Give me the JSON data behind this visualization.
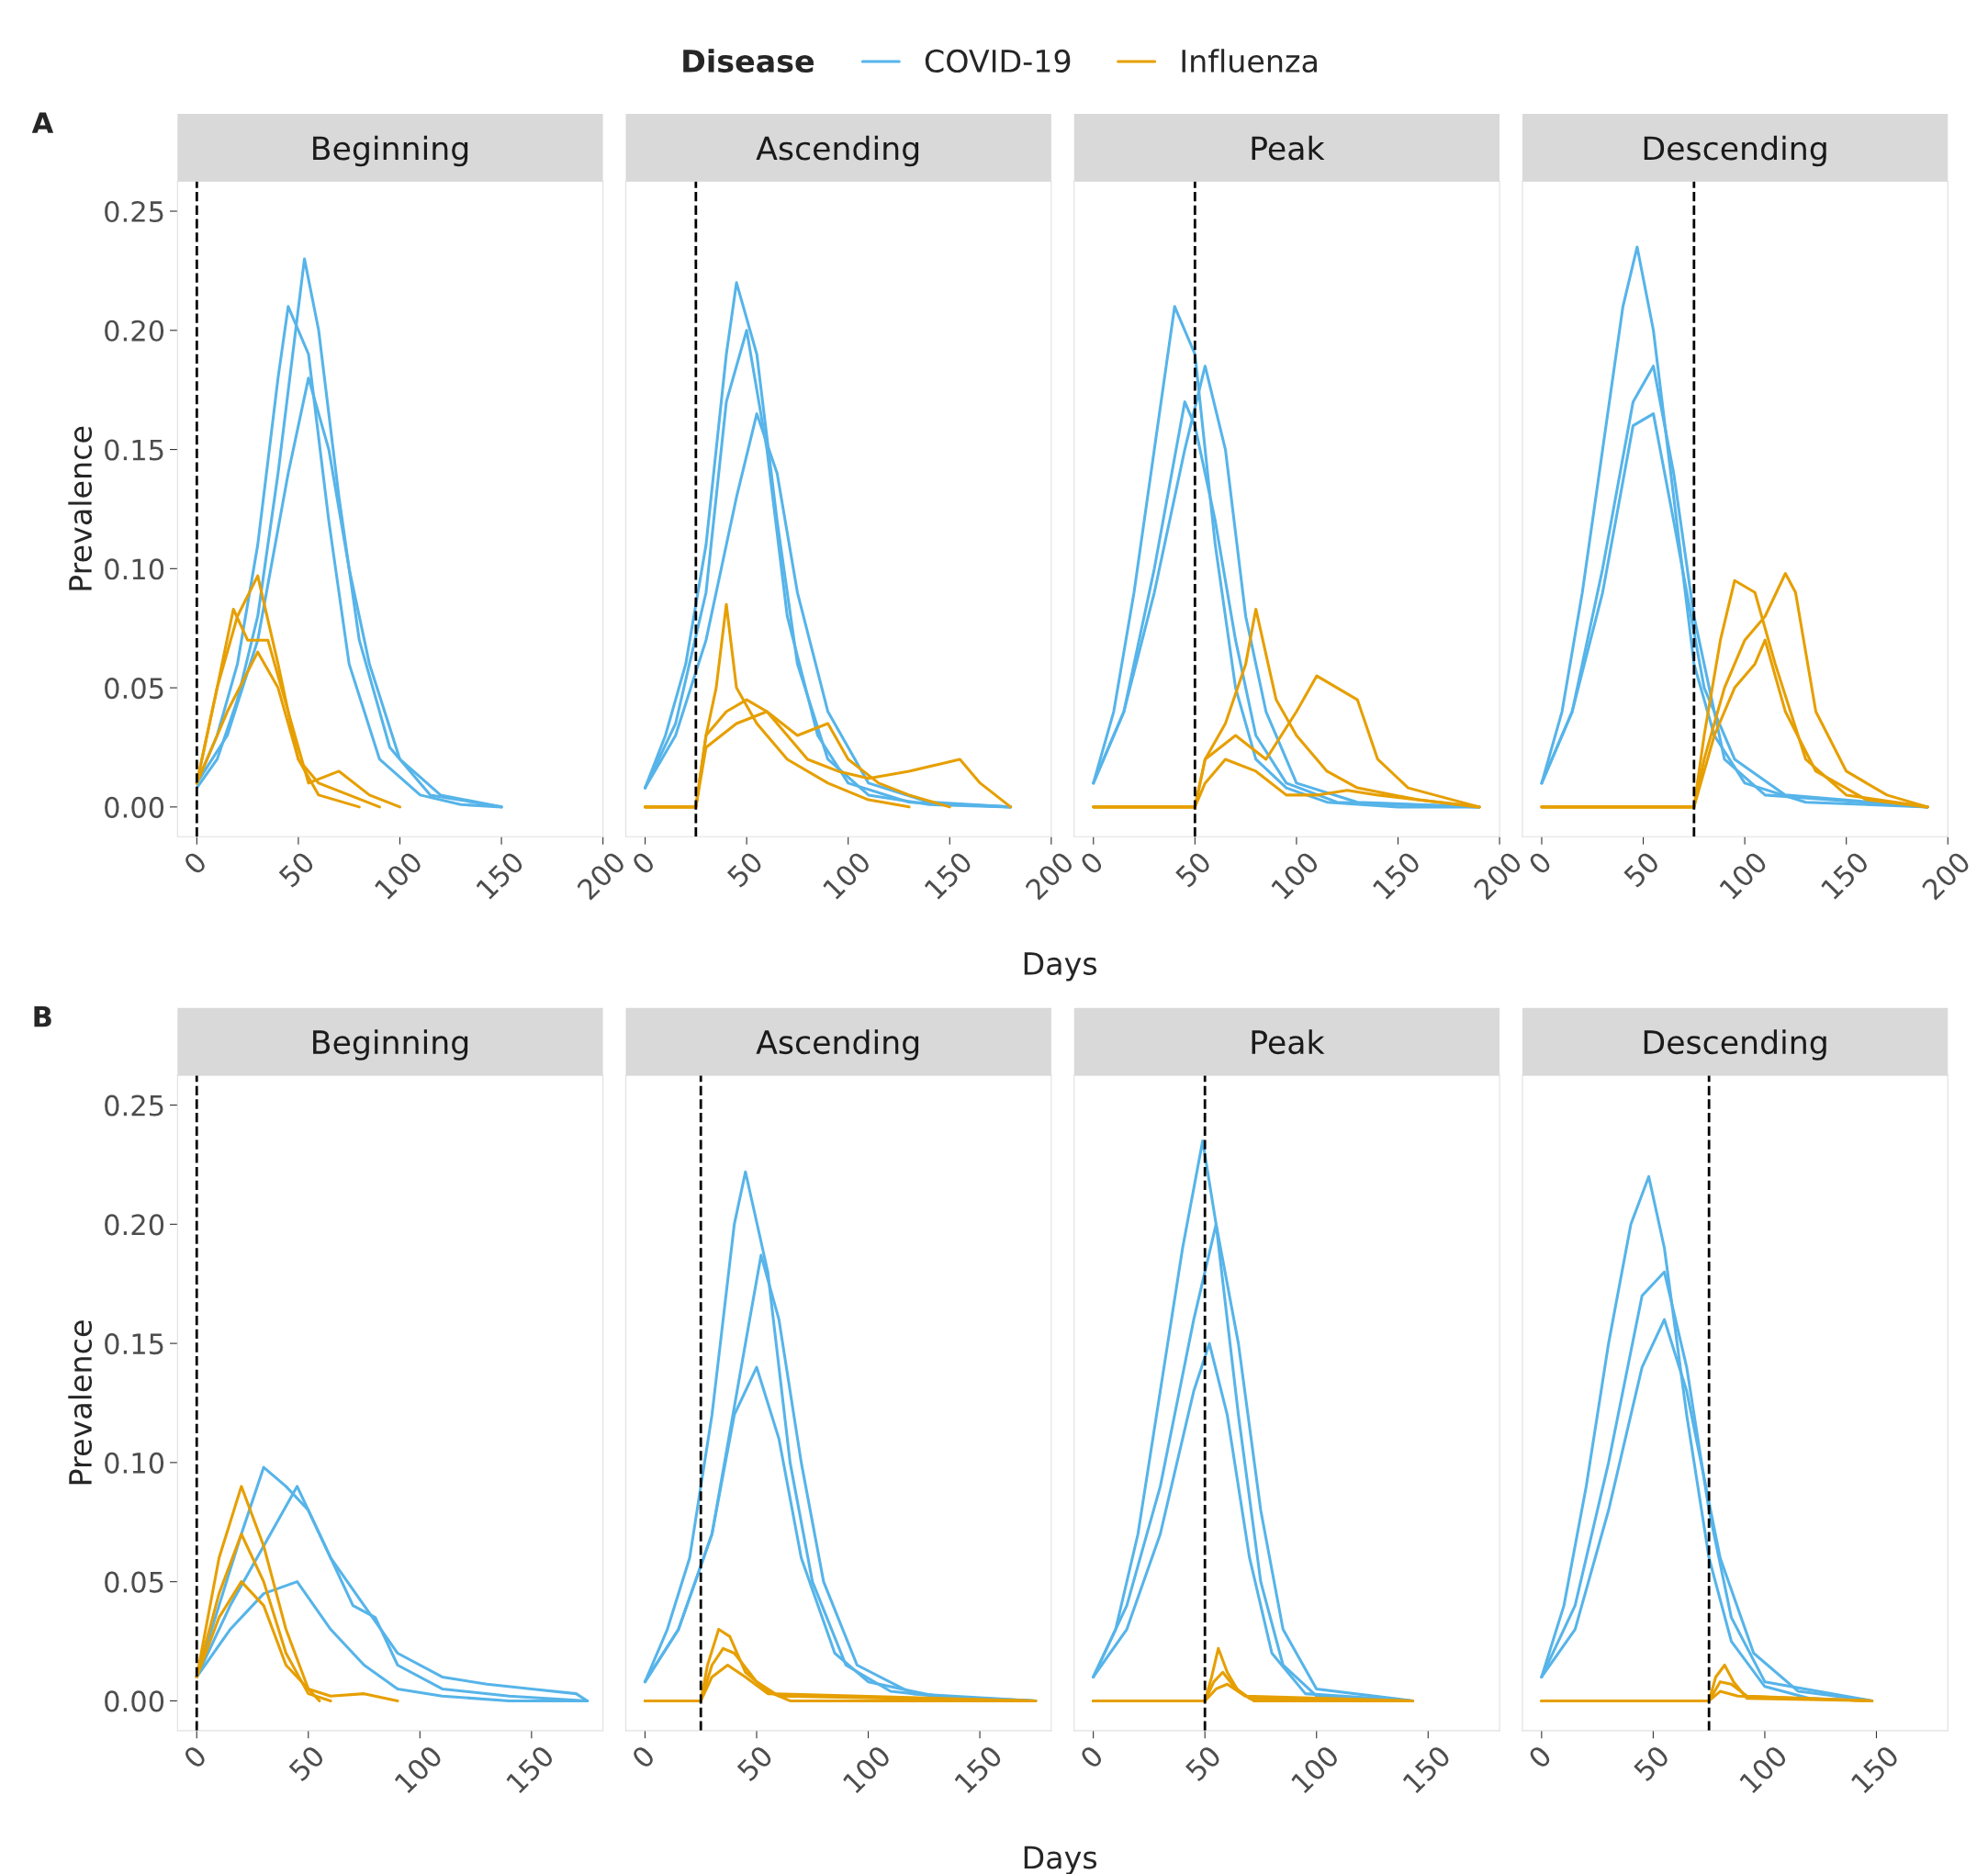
{
  "chart_data": [
    {
      "type": "line",
      "title": "Beginning",
      "ylabel": "Prevalence",
      "legend": "top",
      "legend_title": "Disease",
      "annotations": [
        "A"
      ],
      "xlim": [
        -9.5,
        200
      ],
      "xticks": [
        0,
        50,
        100,
        150,
        200
      ],
      "ylim": [
        -0.0125,
        0.2625
      ],
      "yticks": [
        {
          "value": 0,
          "label": "0.00"
        },
        {
          "value": 0.05,
          "label": "0.05"
        },
        {
          "value": 0.1,
          "label": "0.10"
        },
        {
          "value": 0.15,
          "label": "0.15"
        },
        {
          "value": 0.2,
          "label": "0.20"
        },
        {
          "value": 0.25,
          "label": "0.25"
        }
      ],
      "ref_lines": [
        {
          "axis": "x",
          "value": 0,
          "line_style": "dashed",
          "color": "#000000"
        }
      ],
      "series": [
        {
          "name": "COVID-19",
          "color": "#56b4e9",
          "x": [
            0,
            10,
            20,
            30,
            40,
            45,
            55,
            65,
            75,
            90,
            110,
            130,
            150
          ],
          "values": [
            0.01,
            0.03,
            0.06,
            0.11,
            0.18,
            0.21,
            0.19,
            0.12,
            0.06,
            0.02,
            0.005,
            0.001,
            0
          ]
        },
        {
          "color": "#56b4e9",
          "x": [
            0,
            10,
            20,
            30,
            40,
            53,
            60,
            70,
            80,
            95,
            115,
            150
          ],
          "values": [
            0.008,
            0.02,
            0.045,
            0.08,
            0.14,
            0.23,
            0.2,
            0.13,
            0.07,
            0.025,
            0.005,
            0
          ]
        },
        {
          "color": "#56b4e9",
          "x": [
            0,
            15,
            30,
            45,
            55,
            65,
            75,
            85,
            100,
            120,
            150
          ],
          "values": [
            0.01,
            0.03,
            0.07,
            0.14,
            0.18,
            0.15,
            0.1,
            0.06,
            0.02,
            0.005,
            0
          ]
        },
        {
          "name": "Influenza",
          "color": "#e69f00",
          "x": [
            0,
            10,
            20,
            30,
            40,
            50,
            60,
            75,
            90
          ],
          "values": [
            0.01,
            0.05,
            0.08,
            0.097,
            0.06,
            0.02,
            0.01,
            0.005,
            0
          ]
        },
        {
          "color": "#e69f00",
          "x": [
            0,
            10,
            18,
            25,
            35,
            45,
            55,
            70,
            85,
            100
          ],
          "values": [
            0.01,
            0.05,
            0.083,
            0.07,
            0.07,
            0.04,
            0.01,
            0.015,
            0.005,
            0
          ]
        },
        {
          "color": "#e69f00",
          "x": [
            0,
            15,
            30,
            40,
            50,
            60,
            80
          ],
          "values": [
            0.01,
            0.04,
            0.065,
            0.05,
            0.02,
            0.005,
            0
          ]
        }
      ]
    },
    {
      "type": "line",
      "title": "Ascending",
      "xlabel": "Days",
      "tick_labels": "x",
      "xlim": [
        -9.5,
        200
      ],
      "xticks": [
        0,
        50,
        100,
        150,
        200
      ],
      "ylim": [
        -0.0125,
        0.2625
      ],
      "ref_lines": [
        {
          "axis": "x",
          "value": 25,
          "line_style": "dashed",
          "color": "#000000"
        }
      ],
      "series": [
        {
          "color": "#56b4e9",
          "x": [
            0,
            10,
            20,
            30,
            40,
            45,
            55,
            65,
            75,
            90,
            110,
            140,
            180
          ],
          "values": [
            0.008,
            0.03,
            0.06,
            0.11,
            0.19,
            0.22,
            0.19,
            0.12,
            0.06,
            0.02,
            0.005,
            0.001,
            0
          ]
        },
        {
          "color": "#56b4e9",
          "x": [
            0,
            15,
            30,
            45,
            55,
            65,
            75,
            90,
            110,
            140,
            180
          ],
          "values": [
            0.008,
            0.03,
            0.07,
            0.13,
            0.165,
            0.14,
            0.09,
            0.04,
            0.01,
            0.002,
            0
          ]
        },
        {
          "color": "#56b4e9",
          "x": [
            0,
            15,
            30,
            40,
            50,
            60,
            70,
            85,
            100,
            130,
            180
          ],
          "values": [
            0.008,
            0.035,
            0.09,
            0.17,
            0.2,
            0.15,
            0.08,
            0.03,
            0.01,
            0.002,
            0
          ]
        },
        {
          "color": "#e69f00",
          "x": [
            0,
            25,
            30,
            35,
            40,
            45,
            55,
            70,
            90,
            110,
            130
          ],
          "values": [
            0,
            0,
            0.03,
            0.05,
            0.085,
            0.05,
            0.035,
            0.02,
            0.01,
            0.003,
            0
          ]
        },
        {
          "color": "#e69f00",
          "x": [
            0,
            25,
            30,
            40,
            50,
            60,
            70,
            80,
            95,
            110,
            130,
            145,
            155,
            165,
            180
          ],
          "values": [
            0,
            0,
            0.03,
            0.04,
            0.045,
            0.04,
            0.03,
            0.02,
            0.015,
            0.012,
            0.015,
            0.018,
            0.02,
            0.01,
            0
          ]
        },
        {
          "color": "#e69f00",
          "x": [
            0,
            25,
            30,
            45,
            60,
            75,
            90,
            100,
            115,
            130,
            150
          ],
          "values": [
            0,
            0,
            0.025,
            0.035,
            0.04,
            0.03,
            0.035,
            0.02,
            0.01,
            0.005,
            0
          ]
        }
      ]
    },
    {
      "type": "line",
      "title": "Peak",
      "tick_labels": "x",
      "xlim": [
        -9.5,
        200
      ],
      "xticks": [
        0,
        50,
        100,
        150,
        200
      ],
      "ylim": [
        -0.0125,
        0.2625
      ],
      "ref_lines": [
        {
          "axis": "x",
          "value": 50,
          "line_style": "dashed",
          "color": "#000000"
        }
      ],
      "series": [
        {
          "color": "#56b4e9",
          "x": [
            0,
            10,
            20,
            30,
            40,
            50,
            60,
            70,
            80,
            95,
            115,
            150,
            190
          ],
          "values": [
            0.01,
            0.04,
            0.09,
            0.15,
            0.21,
            0.19,
            0.11,
            0.05,
            0.02,
            0.008,
            0.002,
            0,
            0
          ]
        },
        {
          "color": "#56b4e9",
          "x": [
            0,
            15,
            30,
            45,
            55,
            65,
            75,
            85,
            100,
            130,
            190
          ],
          "values": [
            0.01,
            0.04,
            0.09,
            0.15,
            0.185,
            0.15,
            0.08,
            0.04,
            0.01,
            0.002,
            0
          ]
        },
        {
          "color": "#56b4e9",
          "x": [
            0,
            15,
            30,
            45,
            50,
            60,
            70,
            80,
            95,
            120,
            190
          ],
          "values": [
            0.01,
            0.04,
            0.1,
            0.17,
            0.16,
            0.12,
            0.07,
            0.03,
            0.01,
            0.002,
            0
          ]
        },
        {
          "color": "#e69f00",
          "x": [
            0,
            50,
            55,
            65,
            75,
            80,
            90,
            100,
            115,
            130,
            160,
            190
          ],
          "values": [
            0,
            0,
            0.02,
            0.035,
            0.06,
            0.083,
            0.045,
            0.03,
            0.015,
            0.008,
            0.003,
            0
          ]
        },
        {
          "color": "#e69f00",
          "x": [
            0,
            50,
            55,
            70,
            85,
            100,
            110,
            120,
            130,
            140,
            155,
            190
          ],
          "values": [
            0,
            0,
            0.02,
            0.03,
            0.02,
            0.04,
            0.055,
            0.05,
            0.045,
            0.02,
            0.008,
            0
          ]
        },
        {
          "color": "#e69f00",
          "x": [
            0,
            50,
            55,
            65,
            80,
            95,
            110,
            125,
            140,
            170,
            190
          ],
          "values": [
            0,
            0,
            0.01,
            0.02,
            0.015,
            0.005,
            0.005,
            0.007,
            0.005,
            0.002,
            0
          ]
        }
      ]
    },
    {
      "type": "line",
      "title": "Descending",
      "tick_labels": "x",
      "xlim": [
        -9.5,
        200
      ],
      "xticks": [
        0,
        50,
        100,
        150,
        200
      ],
      "ylim": [
        -0.0125,
        0.2625
      ],
      "ref_lines": [
        {
          "axis": "x",
          "value": 75,
          "line_style": "dashed",
          "color": "#000000"
        }
      ],
      "series": [
        {
          "color": "#56b4e9",
          "x": [
            0,
            10,
            20,
            30,
            40,
            47,
            55,
            65,
            75,
            85,
            100,
            130,
            190
          ],
          "values": [
            0.01,
            0.04,
            0.09,
            0.15,
            0.21,
            0.235,
            0.2,
            0.13,
            0.06,
            0.03,
            0.01,
            0.002,
            0
          ]
        },
        {
          "color": "#56b4e9",
          "x": [
            0,
            15,
            30,
            45,
            55,
            65,
            75,
            90,
            110,
            190
          ],
          "values": [
            0.01,
            0.04,
            0.1,
            0.17,
            0.185,
            0.14,
            0.08,
            0.02,
            0.005,
            0
          ]
        },
        {
          "color": "#56b4e9",
          "x": [
            0,
            15,
            30,
            45,
            55,
            65,
            80,
            95,
            120,
            190
          ],
          "values": [
            0.01,
            0.04,
            0.09,
            0.16,
            0.165,
            0.12,
            0.05,
            0.02,
            0.005,
            0
          ]
        },
        {
          "color": "#e69f00",
          "x": [
            0,
            75,
            80,
            90,
            100,
            110,
            120,
            125,
            135,
            150,
            170,
            190
          ],
          "values": [
            0,
            0,
            0.02,
            0.05,
            0.07,
            0.08,
            0.098,
            0.09,
            0.04,
            0.015,
            0.005,
            0
          ]
        },
        {
          "color": "#e69f00",
          "x": [
            0,
            75,
            80,
            88,
            95,
            105,
            115,
            130,
            150,
            190
          ],
          "values": [
            0,
            0,
            0.03,
            0.07,
            0.095,
            0.09,
            0.06,
            0.02,
            0.005,
            0
          ]
        },
        {
          "color": "#e69f00",
          "x": [
            0,
            75,
            85,
            95,
            105,
            110,
            120,
            135,
            160,
            190
          ],
          "values": [
            0,
            0,
            0.03,
            0.05,
            0.06,
            0.07,
            0.04,
            0.015,
            0.003,
            0
          ]
        }
      ]
    },
    {
      "type": "line",
      "title": "Beginning",
      "ylabel": "Prevalence",
      "annotations": [
        "B"
      ],
      "xlim": [
        -8.6,
        182
      ],
      "xticks": [
        0,
        50,
        100,
        150
      ],
      "ylim": [
        -0.0125,
        0.2625
      ],
      "yticks": [
        {
          "value": 0,
          "label": "0.00"
        },
        {
          "value": 0.05,
          "label": "0.05"
        },
        {
          "value": 0.1,
          "label": "0.10"
        },
        {
          "value": 0.15,
          "label": "0.15"
        },
        {
          "value": 0.2,
          "label": "0.20"
        },
        {
          "value": 0.25,
          "label": "0.25"
        }
      ],
      "ref_lines": [
        {
          "axis": "x",
          "value": 0,
          "line_style": "dashed",
          "color": "#000000"
        }
      ],
      "series": [
        {
          "color": "#56b4e9",
          "x": [
            0,
            10,
            20,
            30,
            40,
            50,
            60,
            75,
            90,
            110,
            130,
            150,
            170,
            175
          ],
          "values": [
            0.01,
            0.04,
            0.07,
            0.098,
            0.09,
            0.08,
            0.06,
            0.04,
            0.02,
            0.01,
            0.007,
            0.005,
            0.003,
            0
          ]
        },
        {
          "color": "#56b4e9",
          "x": [
            0,
            15,
            30,
            45,
            55,
            70,
            80,
            90,
            110,
            140,
            175
          ],
          "values": [
            0.01,
            0.04,
            0.065,
            0.09,
            0.07,
            0.04,
            0.035,
            0.015,
            0.005,
            0.002,
            0
          ]
        },
        {
          "color": "#56b4e9",
          "x": [
            0,
            15,
            30,
            45,
            60,
            75,
            90,
            110,
            140,
            175
          ],
          "values": [
            0.01,
            0.03,
            0.045,
            0.05,
            0.03,
            0.015,
            0.005,
            0.002,
            0,
            0
          ]
        },
        {
          "color": "#e69f00",
          "x": [
            0,
            10,
            20,
            30,
            40,
            50,
            60,
            75,
            90
          ],
          "values": [
            0.01,
            0.06,
            0.09,
            0.065,
            0.03,
            0.005,
            0.002,
            0.003,
            0
          ]
        },
        {
          "color": "#e69f00",
          "x": [
            0,
            10,
            20,
            30,
            40,
            50,
            60
          ],
          "values": [
            0.01,
            0.045,
            0.07,
            0.05,
            0.02,
            0.003,
            0
          ]
        },
        {
          "color": "#e69f00",
          "x": [
            0,
            10,
            20,
            30,
            40,
            55
          ],
          "values": [
            0.01,
            0.035,
            0.05,
            0.04,
            0.015,
            0
          ]
        }
      ]
    },
    {
      "type": "line",
      "title": "Ascending",
      "xlabel": "Days",
      "tick_labels": "x",
      "xlim": [
        -8.6,
        182
      ],
      "xticks": [
        0,
        50,
        100,
        150
      ],
      "ylim": [
        -0.0125,
        0.2625
      ],
      "ref_lines": [
        {
          "axis": "x",
          "value": 25,
          "line_style": "dashed",
          "color": "#000000"
        }
      ],
      "series": [
        {
          "color": "#56b4e9",
          "x": [
            0,
            10,
            20,
            30,
            40,
            45,
            55,
            65,
            75,
            90,
            110,
            140,
            175
          ],
          "values": [
            0.008,
            0.03,
            0.06,
            0.12,
            0.2,
            0.222,
            0.18,
            0.1,
            0.05,
            0.015,
            0.004,
            0.001,
            0
          ]
        },
        {
          "color": "#56b4e9",
          "x": [
            0,
            15,
            30,
            45,
            52,
            60,
            70,
            80,
            95,
            120,
            175
          ],
          "values": [
            0.008,
            0.03,
            0.07,
            0.15,
            0.187,
            0.16,
            0.1,
            0.05,
            0.015,
            0.003,
            0
          ]
        },
        {
          "color": "#56b4e9",
          "x": [
            0,
            15,
            30,
            40,
            50,
            60,
            70,
            85,
            100,
            130,
            175
          ],
          "values": [
            0.008,
            0.03,
            0.07,
            0.12,
            0.14,
            0.11,
            0.06,
            0.02,
            0.008,
            0.002,
            0
          ]
        },
        {
          "color": "#e69f00",
          "x": [
            0,
            25,
            28,
            33,
            38,
            45,
            55,
            65,
            175
          ],
          "values": [
            0,
            0,
            0.015,
            0.03,
            0.027,
            0.012,
            0.004,
            0,
            0
          ]
        },
        {
          "color": "#e69f00",
          "x": [
            0,
            25,
            30,
            35,
            40,
            50,
            60,
            175
          ],
          "values": [
            0,
            0,
            0.015,
            0.022,
            0.02,
            0.008,
            0.002,
            0
          ]
        },
        {
          "color": "#e69f00",
          "x": [
            0,
            25,
            30,
            37,
            45,
            55,
            175
          ],
          "values": [
            0,
            0,
            0.01,
            0.015,
            0.01,
            0.003,
            0
          ]
        }
      ]
    },
    {
      "type": "line",
      "title": "Peak",
      "tick_labels": "x",
      "xlim": [
        -8.6,
        182
      ],
      "xticks": [
        0,
        50,
        100,
        150
      ],
      "ylim": [
        -0.0125,
        0.2625
      ],
      "ref_lines": [
        {
          "axis": "x",
          "value": 50,
          "line_style": "dashed",
          "color": "#000000"
        }
      ],
      "series": [
        {
          "color": "#56b4e9",
          "x": [
            0,
            10,
            20,
            30,
            40,
            49,
            55,
            65,
            75,
            85,
            100,
            143
          ],
          "values": [
            0.01,
            0.03,
            0.07,
            0.13,
            0.19,
            0.235,
            0.2,
            0.12,
            0.05,
            0.015,
            0.002,
            0
          ]
        },
        {
          "color": "#56b4e9",
          "x": [
            0,
            15,
            30,
            45,
            55,
            65,
            75,
            85,
            100,
            143
          ],
          "values": [
            0.01,
            0.04,
            0.09,
            0.16,
            0.2,
            0.15,
            0.08,
            0.03,
            0.005,
            0
          ]
        },
        {
          "color": "#56b4e9",
          "x": [
            0,
            15,
            30,
            45,
            52,
            60,
            70,
            80,
            95,
            143
          ],
          "values": [
            0.01,
            0.03,
            0.07,
            0.13,
            0.15,
            0.12,
            0.06,
            0.02,
            0.003,
            0
          ]
        },
        {
          "color": "#e69f00",
          "x": [
            0,
            50,
            53,
            56,
            60,
            65,
            72,
            143
          ],
          "values": [
            0,
            0,
            0.01,
            0.022,
            0.012,
            0.004,
            0,
            0
          ]
        },
        {
          "color": "#e69f00",
          "x": [
            0,
            50,
            54,
            58,
            63,
            70,
            143
          ],
          "values": [
            0,
            0,
            0.008,
            0.012,
            0.006,
            0.001,
            0
          ]
        },
        {
          "color": "#e69f00",
          "x": [
            0,
            50,
            55,
            60,
            68,
            143
          ],
          "values": [
            0,
            0,
            0.005,
            0.007,
            0.002,
            0
          ]
        }
      ]
    },
    {
      "type": "line",
      "title": "Descending",
      "tick_labels": "x",
      "xlim": [
        -8.6,
        182
      ],
      "xticks": [
        0,
        50,
        100,
        150
      ],
      "ylim": [
        -0.0125,
        0.2625
      ],
      "ref_lines": [
        {
          "axis": "x",
          "value": 75,
          "line_style": "dashed",
          "color": "#000000"
        }
      ],
      "series": [
        {
          "color": "#56b4e9",
          "x": [
            0,
            10,
            20,
            30,
            40,
            48,
            55,
            65,
            75,
            85,
            100,
            120,
            148
          ],
          "values": [
            0.01,
            0.04,
            0.09,
            0.15,
            0.2,
            0.22,
            0.19,
            0.12,
            0.06,
            0.025,
            0.006,
            0.001,
            0
          ]
        },
        {
          "color": "#56b4e9",
          "x": [
            0,
            15,
            30,
            45,
            55,
            65,
            75,
            85,
            100,
            148
          ],
          "values": [
            0.01,
            0.04,
            0.1,
            0.17,
            0.18,
            0.14,
            0.08,
            0.035,
            0.008,
            0
          ]
        },
        {
          "color": "#56b4e9",
          "x": [
            0,
            15,
            30,
            45,
            55,
            65,
            80,
            95,
            115,
            148
          ],
          "values": [
            0.01,
            0.03,
            0.08,
            0.14,
            0.16,
            0.13,
            0.06,
            0.02,
            0.004,
            0
          ]
        },
        {
          "color": "#e69f00",
          "x": [
            0,
            75,
            78,
            82,
            86,
            92,
            148
          ],
          "values": [
            0,
            0,
            0.01,
            0.015,
            0.008,
            0.001,
            0
          ]
        },
        {
          "color": "#e69f00",
          "x": [
            0,
            75,
            80,
            85,
            92,
            148
          ],
          "values": [
            0,
            0,
            0.008,
            0.007,
            0.002,
            0
          ]
        },
        {
          "color": "#e69f00",
          "x": [
            0,
            75,
            80,
            88,
            148
          ],
          "values": [
            0,
            0,
            0.004,
            0.002,
            0
          ]
        }
      ]
    }
  ]
}
